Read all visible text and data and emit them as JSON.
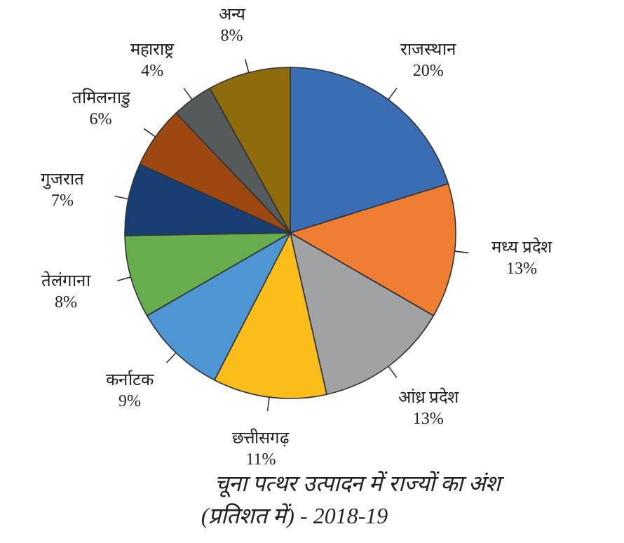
{
  "chart_data": {
    "type": "pie",
    "title": "चूना पत्थर उत्पादन में राज्यों का अंश",
    "subtitle": "(प्रतिशत में) - 2018-19",
    "categories": [
      "राजस्थान",
      "मध्य प्रदेश",
      "आंध्र प्रदेश",
      "छत्तीसगढ़",
      "कर्नाटक",
      "तेलंगाना",
      "गुजरात",
      "तमिलनाडु",
      "महाराष्ट्र",
      "अन्य"
    ],
    "values": [
      20,
      13,
      13,
      11,
      9,
      8,
      7,
      6,
      4,
      8
    ],
    "value_labels": [
      "20%",
      "13%",
      "13%",
      "11%",
      "9%",
      "8%",
      "7%",
      "6%",
      "4%",
      "8%"
    ],
    "colors": [
      "#3b6db5",
      "#ef7d32",
      "#a0a2a4",
      "#fbbd19",
      "#4e95d3",
      "#66ad4d",
      "#173f74",
      "#9d4811",
      "#555a5c",
      "#8e6b0d"
    ]
  }
}
